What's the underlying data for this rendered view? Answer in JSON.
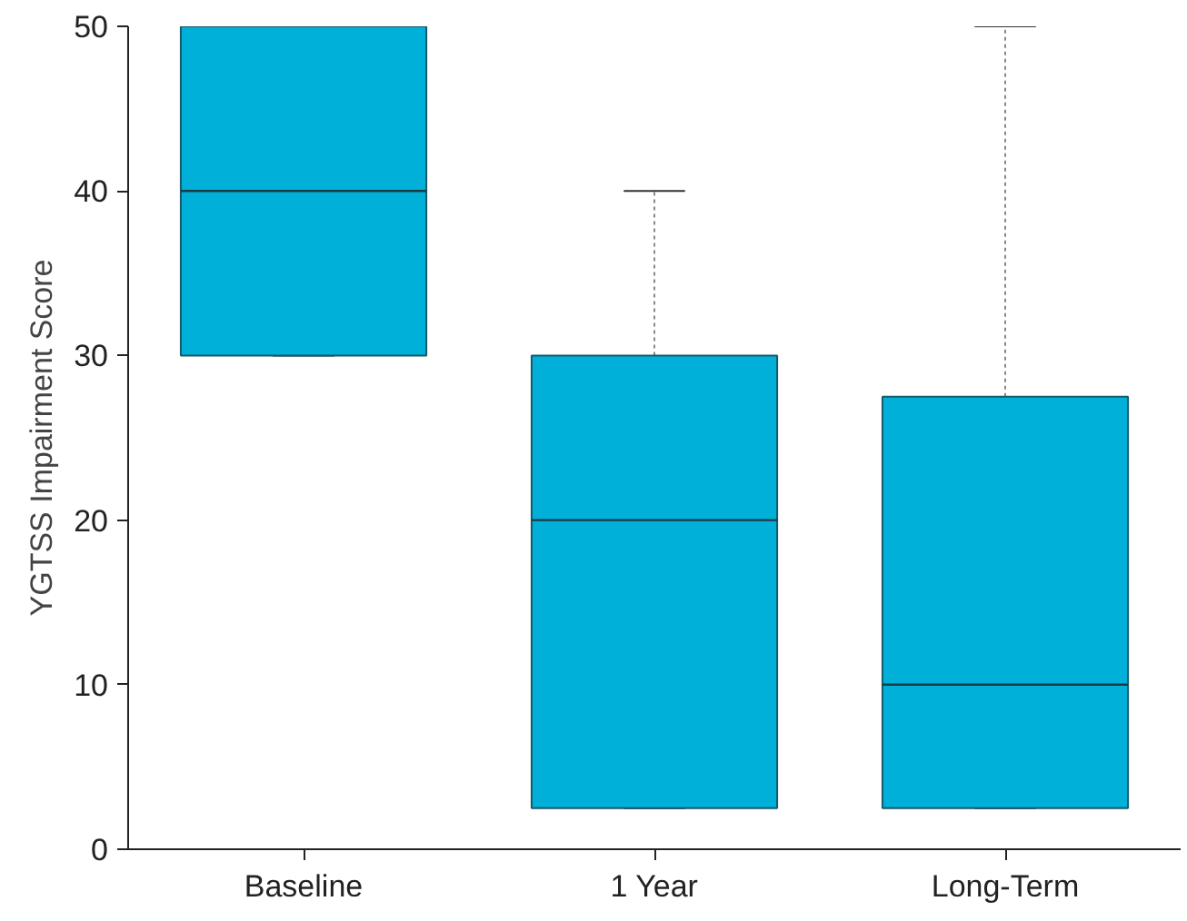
{
  "chart_data": {
    "type": "box",
    "ylabel": "YGTSS Impairment Score",
    "categories": [
      "Baseline",
      "1 Year",
      "Long-Term"
    ],
    "boxes": [
      {
        "low": 30,
        "q1": 30,
        "median": 40,
        "q3": 50,
        "high": 50
      },
      {
        "low": 2.5,
        "q1": 2.5,
        "median": 20,
        "q3": 30,
        "high": 40
      },
      {
        "low": 2.5,
        "q1": 2.5,
        "median": 10,
        "q3": 27.5,
        "high": 50
      }
    ],
    "color": "#00b0d8",
    "ylim": [
      0,
      50
    ],
    "yticks": [
      0,
      10,
      20,
      30,
      40,
      50
    ],
    "grid": false
  }
}
